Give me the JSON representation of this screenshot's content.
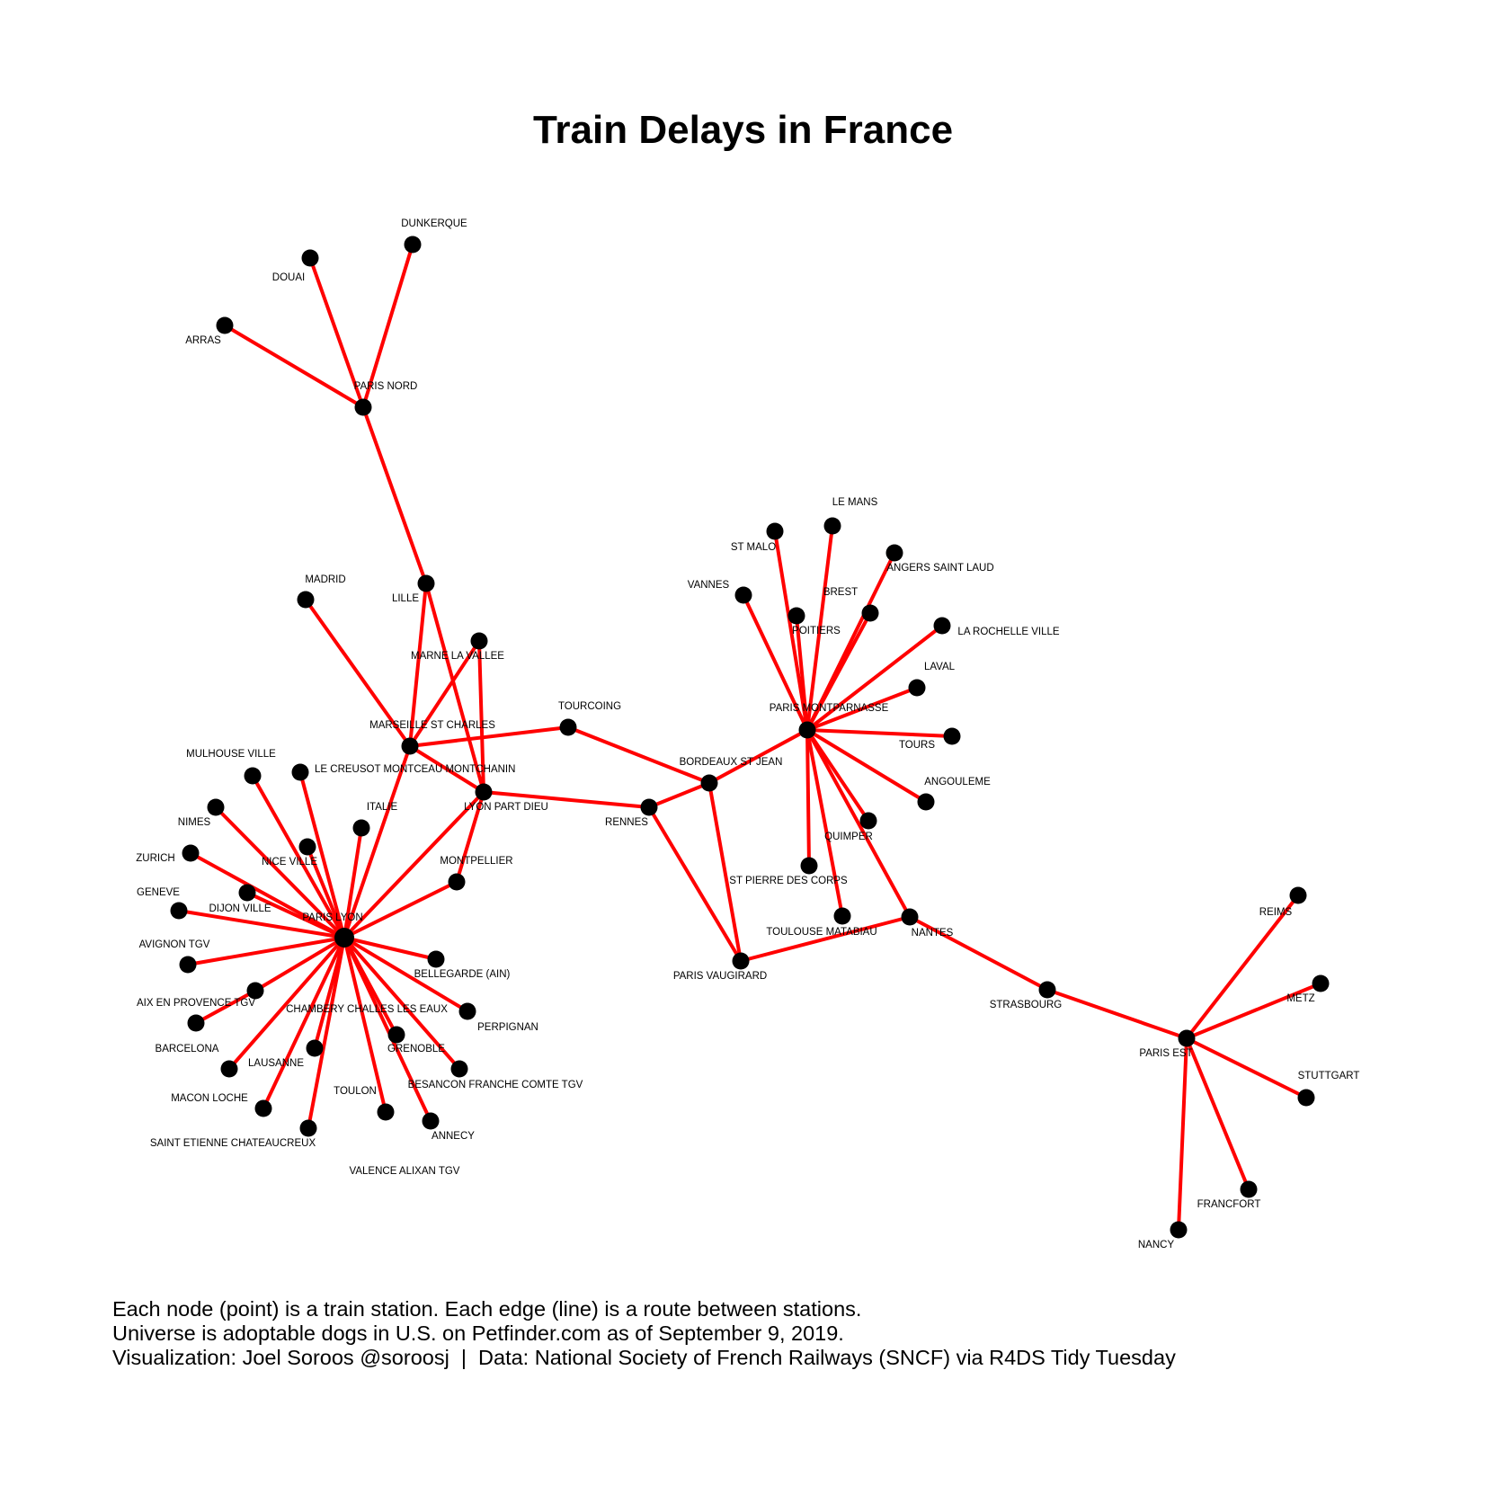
{
  "title": "Train Delays in France",
  "caption": [
    "Each node (point) is a train station. Each edge (line) is a route between stations.",
    "Universe is adoptable dogs in U.S. on Petfinder.com as of September 9, 2019.",
    "Visualization: Joel Soroos @soroosj  |  Data: National Society of French Railways (SNCF) via R4DS Tidy Tuesday"
  ],
  "colors": {
    "edge": "#ff0000",
    "edge_alt": "#000000",
    "node": "#000000",
    "label": "#000000"
  },
  "nodes": [
    {
      "id": "DUNKERQUE",
      "label": "DUNKERQUE"
    },
    {
      "id": "DOUAI",
      "label": "DOUAI"
    },
    {
      "id": "ARRAS",
      "label": "ARRAS"
    },
    {
      "id": "PARIS NORD",
      "label": "PARIS NORD"
    },
    {
      "id": "LILLE",
      "label": "LILLE"
    },
    {
      "id": "MADRID",
      "label": "MADRID"
    },
    {
      "id": "MARNE LA VALLEE",
      "label": "MARNE LA VALLEE"
    },
    {
      "id": "MARSEILLE ST CHARLES",
      "label": "MARSEILLE ST CHARLES"
    },
    {
      "id": "TOURCOING",
      "label": "TOURCOING"
    },
    {
      "id": "LE CREUSOT MONTCEAU MONTCHANIN",
      "label": "LE CREUSOT MONTCEAU MONTCHANIN"
    },
    {
      "id": "LYON PART DIEU",
      "label": "LYON PART DIEU"
    },
    {
      "id": "MULHOUSE VILLE",
      "label": "MULHOUSE VILLE"
    },
    {
      "id": "NIMES",
      "label": "NIMES"
    },
    {
      "id": "ITALIE",
      "label": "ITALIE"
    },
    {
      "id": "ZURICH",
      "label": "ZURICH"
    },
    {
      "id": "NICE VILLE",
      "label": "NICE VILLE"
    },
    {
      "id": "MONTPELLIER",
      "label": "MONTPELLIER"
    },
    {
      "id": "GENEVE",
      "label": "GENEVE"
    },
    {
      "id": "DIJON VILLE",
      "label": "DIJON VILLE"
    },
    {
      "id": "PARIS LYON",
      "label": "PARIS LYON"
    },
    {
      "id": "AVIGNON TGV",
      "label": "AVIGNON TGV"
    },
    {
      "id": "BELLEGARDE (AIN)",
      "label": "BELLEGARDE (AIN)"
    },
    {
      "id": "AIX EN PROVENCE TGV",
      "label": "AIX EN PROVENCE TGV"
    },
    {
      "id": "CHAMBERY CHALLES LES EAUX",
      "label": "CHAMBERY CHALLES LES EAUX"
    },
    {
      "id": "PERPIGNAN",
      "label": "PERPIGNAN"
    },
    {
      "id": "BARCELONA",
      "label": "BARCELONA"
    },
    {
      "id": "GRENOBLE",
      "label": "GRENOBLE"
    },
    {
      "id": "LAUSANNE",
      "label": "LAUSANNE"
    },
    {
      "id": "BESANCON FRANCHE COMTE TGV",
      "label": "BESANCON FRANCHE COMTE TGV"
    },
    {
      "id": "MACON LOCHE",
      "label": "MACON LOCHE"
    },
    {
      "id": "TOULON",
      "label": "TOULON"
    },
    {
      "id": "ANNECY",
      "label": "ANNECY"
    },
    {
      "id": "SAINT ETIENNE CHATEAUCREUX",
      "label": "SAINT ETIENNE CHATEAUCREUX"
    },
    {
      "id": "VALENCE ALIXAN TGV",
      "label": "VALENCE ALIXAN TGV"
    },
    {
      "id": "RENNES",
      "label": "RENNES"
    },
    {
      "id": "BORDEAUX ST JEAN",
      "label": "BORDEAUX ST JEAN"
    },
    {
      "id": "PARIS VAUGIRARD",
      "label": "PARIS VAUGIRARD"
    },
    {
      "id": "LE MANS",
      "label": "LE MANS"
    },
    {
      "id": "ST MALO",
      "label": "ST MALO"
    },
    {
      "id": "ANGERS SAINT LAUD",
      "label": "ANGERS SAINT LAUD"
    },
    {
      "id": "VANNES",
      "label": "VANNES"
    },
    {
      "id": "BREST",
      "label": "BREST"
    },
    {
      "id": "POITIERS",
      "label": "POITIERS"
    },
    {
      "id": "LA ROCHELLE VILLE",
      "label": "LA ROCHELLE VILLE"
    },
    {
      "id": "LAVAL",
      "label": "LAVAL"
    },
    {
      "id": "PARIS MONTPARNASSE",
      "label": "PARIS MONTPARNASSE"
    },
    {
      "id": "TOURS",
      "label": "TOURS"
    },
    {
      "id": "ANGOULEME",
      "label": "ANGOULEME"
    },
    {
      "id": "QUIMPER",
      "label": "QUIMPER"
    },
    {
      "id": "ST PIERRE DES CORPS",
      "label": "ST PIERRE DES CORPS"
    },
    {
      "id": "TOULOUSE MATABIAU",
      "label": "TOULOUSE MATABIAU"
    },
    {
      "id": "NANTES",
      "label": "NANTES"
    },
    {
      "id": "STRASBOURG",
      "label": "STRASBOURG"
    },
    {
      "id": "PARIS EST",
      "label": "PARIS EST"
    },
    {
      "id": "REIMS",
      "label": "REIMS"
    },
    {
      "id": "METZ",
      "label": "METZ"
    },
    {
      "id": "STUTTGART",
      "label": "STUTTGART"
    },
    {
      "id": "FRANCFORT",
      "label": "FRANCFORT"
    },
    {
      "id": "NANCY",
      "label": "NANCY"
    }
  ],
  "edges": [
    [
      "PARIS NORD",
      "DUNKERQUE"
    ],
    [
      "PARIS NORD",
      "DOUAI"
    ],
    [
      "PARIS NORD",
      "ARRAS"
    ],
    [
      "PARIS NORD",
      "LILLE"
    ],
    [
      "LILLE",
      "MARSEILLE ST CHARLES"
    ],
    [
      "LILLE",
      "LYON PART DIEU"
    ],
    [
      "MADRID",
      "MARSEILLE ST CHARLES"
    ],
    [
      "MARNE LA VALLEE",
      "MARSEILLE ST CHARLES"
    ],
    [
      "MARNE LA VALLEE",
      "LYON PART DIEU"
    ],
    [
      "MARSEILLE ST CHARLES",
      "TOURCOING"
    ],
    [
      "MARSEILLE ST CHARLES",
      "LYON PART DIEU"
    ],
    [
      "MARSEILLE ST CHARLES",
      "PARIS LYON"
    ],
    [
      "TOURCOING",
      "BORDEAUX ST JEAN"
    ],
    [
      "LYON PART DIEU",
      "RENNES"
    ],
    [
      "LYON PART DIEU",
      "PARIS LYON"
    ],
    [
      "LYON PART DIEU",
      "MONTPELLIER"
    ],
    [
      "PARIS LYON",
      "MULHOUSE VILLE"
    ],
    [
      "PARIS LYON",
      "LE CREUSOT MONTCEAU MONTCHANIN"
    ],
    [
      "PARIS LYON",
      "NIMES"
    ],
    [
      "PARIS LYON",
      "ITALIE"
    ],
    [
      "PARIS LYON",
      "ZURICH"
    ],
    [
      "PARIS LYON",
      "NICE VILLE"
    ],
    [
      "PARIS LYON",
      "MONTPELLIER"
    ],
    [
      "PARIS LYON",
      "GENEVE"
    ],
    [
      "PARIS LYON",
      "DIJON VILLE"
    ],
    [
      "PARIS LYON",
      "AVIGNON TGV"
    ],
    [
      "PARIS LYON",
      "BELLEGARDE (AIN)"
    ],
    [
      "PARIS LYON",
      "AIX EN PROVENCE TGV"
    ],
    [
      "PARIS LYON",
      "PERPIGNAN"
    ],
    [
      "PARIS LYON",
      "LAUSANNE"
    ],
    [
      "PARIS LYON",
      "GRENOBLE"
    ],
    [
      "PARIS LYON",
      "BESANCON FRANCHE COMTE TGV"
    ],
    [
      "PARIS LYON",
      "MACON LOCHE"
    ],
    [
      "PARIS LYON",
      "TOULON"
    ],
    [
      "PARIS LYON",
      "ANNECY"
    ],
    [
      "PARIS LYON",
      "SAINT ETIENNE CHATEAUCREUX"
    ],
    [
      "PARIS LYON",
      "VALENCE ALIXAN TGV"
    ],
    [
      "AIX EN PROVENCE TGV",
      "BARCELONA"
    ],
    [
      "RENNES",
      "BORDEAUX ST JEAN"
    ],
    [
      "RENNES",
      "PARIS VAUGIRARD"
    ],
    [
      "BORDEAUX ST JEAN",
      "PARIS VAUGIRARD"
    ],
    [
      "BORDEAUX ST JEAN",
      "PARIS MONTPARNASSE"
    ],
    [
      "PARIS VAUGIRARD",
      "NANTES"
    ],
    [
      "PARIS MONTPARNASSE",
      "LE MANS"
    ],
    [
      "PARIS MONTPARNASSE",
      "ST MALO"
    ],
    [
      "PARIS MONTPARNASSE",
      "ANGERS SAINT LAUD"
    ],
    [
      "PARIS MONTPARNASSE",
      "VANNES"
    ],
    [
      "PARIS MONTPARNASSE",
      "BREST"
    ],
    [
      "PARIS MONTPARNASSE",
      "POITIERS"
    ],
    [
      "PARIS MONTPARNASSE",
      "LA ROCHELLE VILLE"
    ],
    [
      "PARIS MONTPARNASSE",
      "LAVAL"
    ],
    [
      "PARIS MONTPARNASSE",
      "TOURS"
    ],
    [
      "PARIS MONTPARNASSE",
      "ANGOULEME"
    ],
    [
      "PARIS MONTPARNASSE",
      "QUIMPER"
    ],
    [
      "PARIS MONTPARNASSE",
      "ST PIERRE DES CORPS"
    ],
    [
      "PARIS MONTPARNASSE",
      "TOULOUSE MATABIAU"
    ],
    [
      "PARIS MONTPARNASSE",
      "NANTES"
    ],
    [
      "NANTES",
      "STRASBOURG"
    ],
    [
      "STRASBOURG",
      "PARIS EST"
    ],
    [
      "PARIS EST",
      "REIMS"
    ],
    [
      "PARIS EST",
      "METZ"
    ],
    [
      "PARIS EST",
      "STUTTGART"
    ],
    [
      "PARIS EST",
      "FRANCFORT"
    ],
    [
      "PARIS EST",
      "NANCY"
    ]
  ],
  "black_edges": [
    [
      "AIX EN PROVENCE TGV",
      "CHAMBERY CHALLES LES EAUX"
    ]
  ]
}
